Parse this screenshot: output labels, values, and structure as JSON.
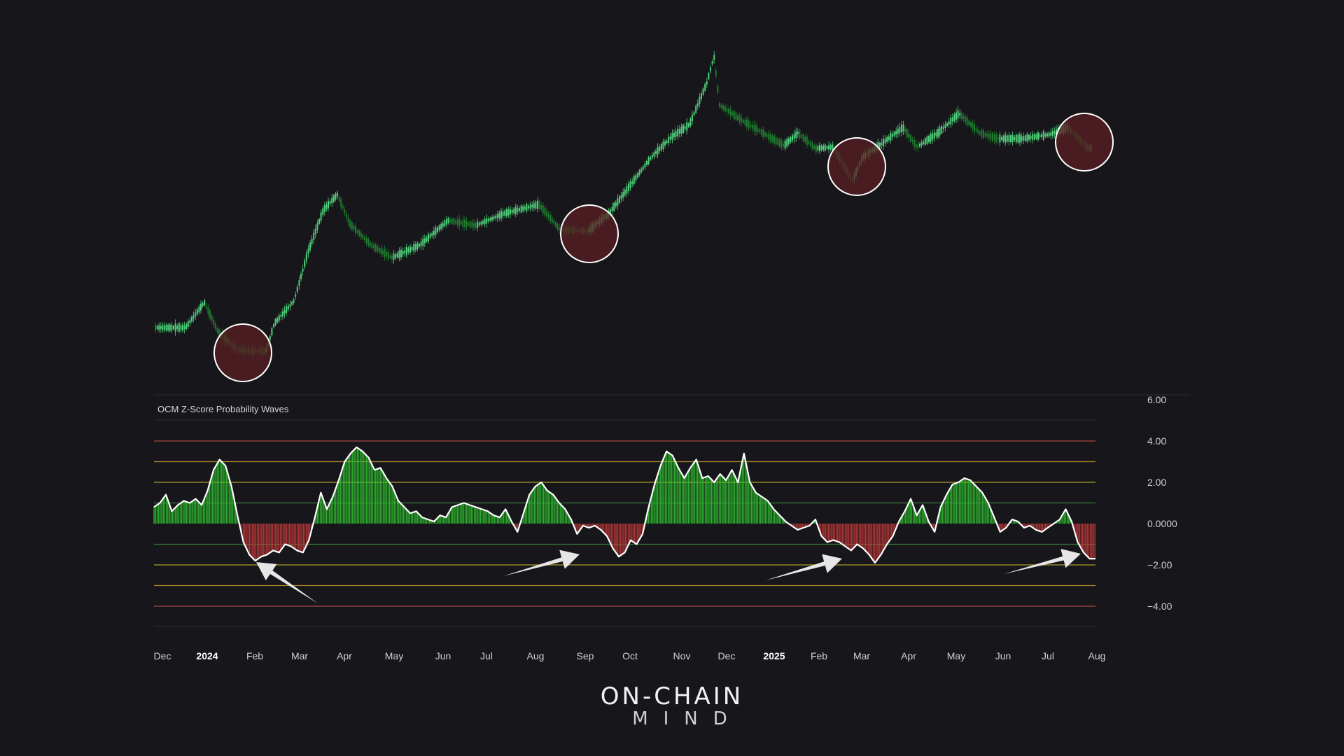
{
  "chart_data": [
    {
      "type": "candlestick",
      "name": "price",
      "x_range": [
        "Dec",
        "Aug"
      ],
      "highlight_markers": [
        "Late Jan 2024",
        "Late Aug 2024",
        "Late Feb 2025",
        "Late Jul 2025"
      ],
      "colors": {
        "up": "#4fd07a",
        "down": "#1f7a2e",
        "marker_fill": "#5a1f24",
        "marker_stroke": "#ffffff"
      }
    },
    {
      "type": "area",
      "title": "OCM Z-Score Probability Waves",
      "ylim": [
        -5,
        6
      ],
      "y_ticks": [
        "6.00",
        "4.00",
        "2.00",
        "0.0000",
        "−2.00",
        "−4.00"
      ],
      "band_levels": [
        {
          "value": 4,
          "color": "#c44a4a"
        },
        {
          "value": 3,
          "color": "#c79a2e"
        },
        {
          "value": 2,
          "color": "#c7b42e"
        },
        {
          "value": 1,
          "color": "#3f8a3f"
        },
        {
          "value": -1,
          "color": "#3f8a3f"
        },
        {
          "value": -2,
          "color": "#c7b42e"
        },
        {
          "value": -3,
          "color": "#c79a2e"
        },
        {
          "value": -4,
          "color": "#c44a4a"
        }
      ],
      "x_tick_labels": [
        "Dec",
        "2024",
        "Feb",
        "Mar",
        "Apr",
        "May",
        "Jun",
        "Jul",
        "Aug",
        "Sep",
        "Oct",
        "Nov",
        "Dec",
        "2025",
        "Feb",
        "Mar",
        "Apr",
        "May",
        "Jun",
        "Jul",
        "Aug"
      ],
      "bold_ticks": [
        "2024",
        "2025"
      ],
      "series": [
        {
          "values": [
            0.8,
            1.0,
            1.4,
            0.6,
            0.9,
            1.1,
            1.0,
            1.2,
            0.9,
            1.6,
            2.6,
            3.1,
            2.8,
            1.8,
            0.4,
            -0.9,
            -1.5,
            -1.8,
            -1.6,
            -1.5,
            -1.3,
            -1.4,
            -1.0,
            -1.1,
            -1.3,
            -1.4,
            -0.8,
            0.3,
            1.5,
            0.7,
            1.3,
            2.1,
            3.0,
            3.4,
            3.7,
            3.5,
            3.2,
            2.6,
            2.7,
            2.2,
            1.8,
            1.1,
            0.8,
            0.5,
            0.6,
            0.3,
            0.2,
            0.1,
            0.4,
            0.3,
            0.8,
            0.9,
            1.0,
            0.9,
            0.8,
            0.7,
            0.6,
            0.4,
            0.3,
            0.7,
            0.1,
            -0.4,
            0.5,
            1.4,
            1.8,
            2.0,
            1.6,
            1.4,
            1.0,
            0.7,
            0.2,
            -0.5,
            -0.1,
            -0.2,
            -0.1,
            -0.3,
            -0.6,
            -1.2,
            -1.6,
            -1.4,
            -0.8,
            -1.0,
            -0.5,
            0.8,
            1.9,
            2.8,
            3.5,
            3.3,
            2.7,
            2.2,
            2.7,
            3.1,
            2.2,
            2.3,
            2.0,
            2.4,
            2.1,
            2.6,
            2.0,
            3.4,
            2.0,
            1.5,
            1.3,
            1.1,
            0.7,
            0.4,
            0.1,
            -0.1,
            -0.3,
            -0.2,
            -0.1,
            0.2,
            -0.6,
            -0.9,
            -0.8,
            -0.9,
            -1.1,
            -1.3,
            -1.0,
            -1.2,
            -1.5,
            -1.9,
            -1.5,
            -1.0,
            -0.6,
            0.1,
            0.6,
            1.2,
            0.4,
            0.9,
            0.1,
            -0.4,
            0.8,
            1.4,
            1.9,
            2.0,
            2.2,
            2.1,
            1.8,
            1.5,
            1.0,
            0.3,
            -0.4,
            -0.2,
            0.2,
            0.1,
            -0.2,
            -0.1,
            -0.3,
            -0.4,
            -0.2,
            0.0,
            0.2,
            0.7,
            0.1,
            -0.9,
            -1.4,
            -1.7,
            -1.7
          ]
        }
      ]
    }
  ],
  "brand": {
    "line1": "ON-CHAIN",
    "line2": "MIND"
  }
}
